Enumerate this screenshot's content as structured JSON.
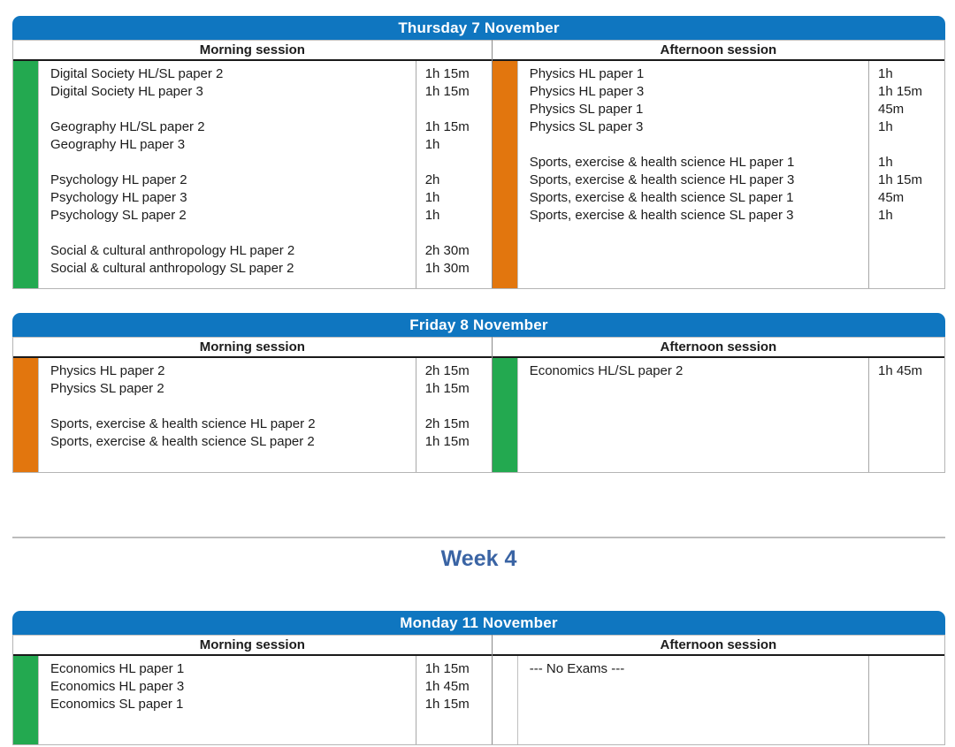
{
  "week_heading": "Week 4",
  "colors": {
    "header_blue": "#0f76c0",
    "green": "#23a950",
    "orange": "#e2760e",
    "week_heading_blue": "#3a64a4"
  },
  "tables": [
    {
      "title": "Thursday 7 November",
      "sessions": [
        {
          "label": "Morning session",
          "strip": "green",
          "items": [
            {
              "subject": "Digital Society HL/SL paper 2",
              "duration": "1h 15m"
            },
            {
              "subject": "Digital Society HL paper 3",
              "duration": "1h 15m"
            },
            {
              "subject": "",
              "duration": ""
            },
            {
              "subject": "Geography HL/SL paper 2",
              "duration": "1h 15m"
            },
            {
              "subject": "Geography HL paper 3",
              "duration": "1h"
            },
            {
              "subject": "",
              "duration": ""
            },
            {
              "subject": "Psychology HL paper 2",
              "duration": "2h"
            },
            {
              "subject": "Psychology HL paper 3",
              "duration": "1h"
            },
            {
              "subject": "Psychology SL paper 2",
              "duration": "1h"
            },
            {
              "subject": "",
              "duration": ""
            },
            {
              "subject": "Social & cultural anthropology HL paper 2",
              "duration": "2h 30m"
            },
            {
              "subject": "Social & cultural anthropology SL paper 2",
              "duration": "1h 30m"
            }
          ]
        },
        {
          "label": "Afternoon session",
          "strip": "orange",
          "items": [
            {
              "subject": "Physics HL paper 1",
              "duration": "1h"
            },
            {
              "subject": "Physics HL paper 3",
              "duration": "1h 15m"
            },
            {
              "subject": "Physics SL paper 1",
              "duration": "45m"
            },
            {
              "subject": "Physics SL paper 3",
              "duration": "1h"
            },
            {
              "subject": "",
              "duration": ""
            },
            {
              "subject": "Sports, exercise & health science HL paper 1",
              "duration": "1h"
            },
            {
              "subject": "Sports, exercise & health science HL paper 3",
              "duration": "1h 15m"
            },
            {
              "subject": "Sports, exercise & health science SL paper 1",
              "duration": "45m"
            },
            {
              "subject": "Sports, exercise & health science SL paper 3",
              "duration": "1h"
            }
          ]
        }
      ]
    },
    {
      "title": "Friday 8 November",
      "sessions": [
        {
          "label": "Morning session",
          "strip": "orange",
          "items": [
            {
              "subject": "Physics HL paper 2",
              "duration": "2h 15m"
            },
            {
              "subject": "Physics SL paper 2",
              "duration": "1h 15m"
            },
            {
              "subject": "",
              "duration": ""
            },
            {
              "subject": "Sports, exercise & health science HL paper 2",
              "duration": "2h 15m"
            },
            {
              "subject": "Sports, exercise & health science SL paper 2",
              "duration": "1h 15m"
            }
          ]
        },
        {
          "label": "Afternoon session",
          "strip": "green",
          "items": [
            {
              "subject": "Economics HL/SL paper 2",
              "duration": "1h 45m"
            }
          ]
        }
      ]
    },
    {
      "title": "Monday 11 November",
      "sessions": [
        {
          "label": "Morning session",
          "strip": "green",
          "items": [
            {
              "subject": "Economics HL paper 1",
              "duration": "1h 15m"
            },
            {
              "subject": "Economics HL paper 3",
              "duration": "1h 45m"
            },
            {
              "subject": "Economics SL paper 1",
              "duration": "1h 15m"
            }
          ]
        },
        {
          "label": "Afternoon session",
          "strip": "none",
          "items": [
            {
              "subject": "--- No Exams ---",
              "duration": ""
            }
          ]
        }
      ]
    }
  ]
}
